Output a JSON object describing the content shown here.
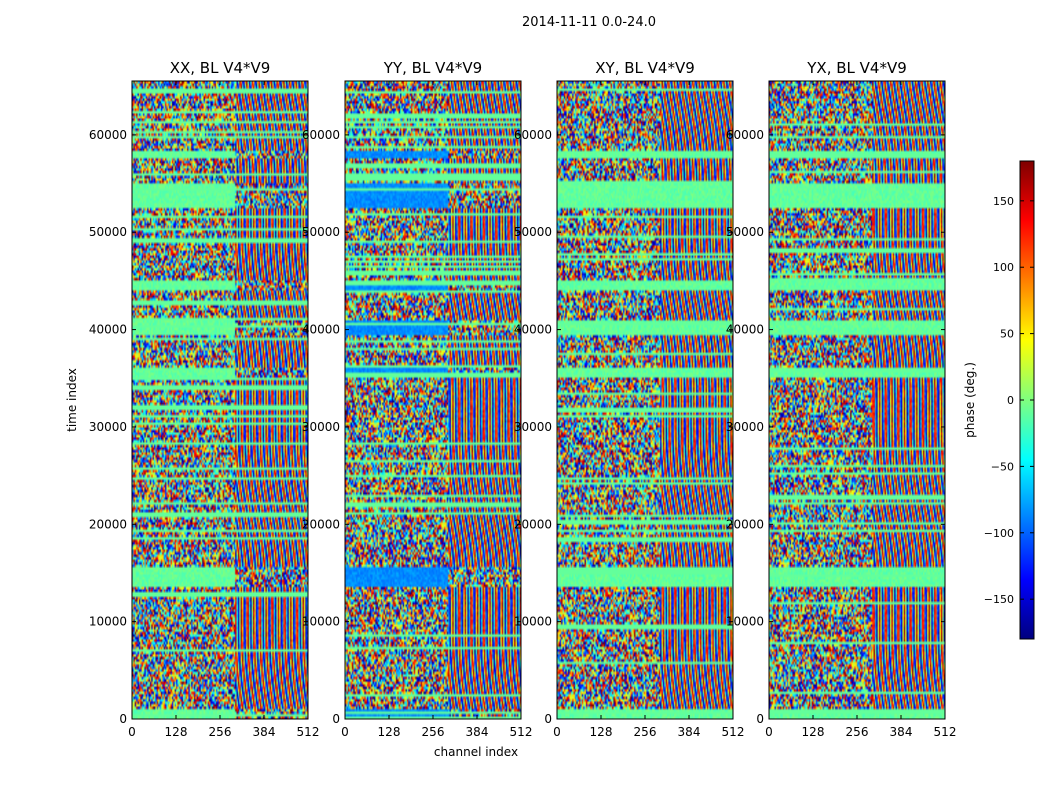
{
  "figure": {
    "suptitle": "2014-11-11 0.0-24.0"
  },
  "chart_data": {
    "type": "heatmap",
    "shared": {
      "xlabel": "channel index",
      "ylabel": "time index",
      "xlim": [
        0,
        512
      ],
      "ylim": [
        0,
        65536
      ],
      "xticks": [
        0,
        128,
        256,
        384,
        512
      ],
      "yticks": [
        0,
        10000,
        20000,
        30000,
        40000,
        50000,
        60000
      ]
    },
    "panels": [
      {
        "title": "XX, BL V4*V9",
        "ylabel": "time index",
        "xlabel": "",
        "band_phase": -10
      },
      {
        "title": "YY, BL V4*V9",
        "ylabel": "",
        "xlabel": "channel index",
        "band_phase": -85
      },
      {
        "title": "XY, BL V4*V9",
        "ylabel": "",
        "xlabel": "",
        "band_phase": null
      },
      {
        "title": "YX, BL V4*V9",
        "ylabel": "",
        "xlabel": "",
        "band_phase": null
      }
    ],
    "flat_bands_time": [
      [
        0,
        1000
      ],
      [
        13500,
        15500
      ],
      [
        35000,
        36000
      ],
      [
        39500,
        41000
      ],
      [
        44000,
        45000
      ],
      [
        52500,
        55000
      ],
      [
        57500,
        58300
      ]
    ],
    "colorbar": {
      "label": "phase (deg.)",
      "range": [
        -180,
        180
      ],
      "ticks": [
        -150,
        -100,
        -50,
        0,
        50,
        100,
        150
      ],
      "colormap": "jet",
      "colors": [
        "#00007f",
        "#0000ff",
        "#007fff",
        "#00ffff",
        "#7fff7f",
        "#ffff00",
        "#ff7f00",
        "#ff0000",
        "#7f0000"
      ]
    }
  }
}
